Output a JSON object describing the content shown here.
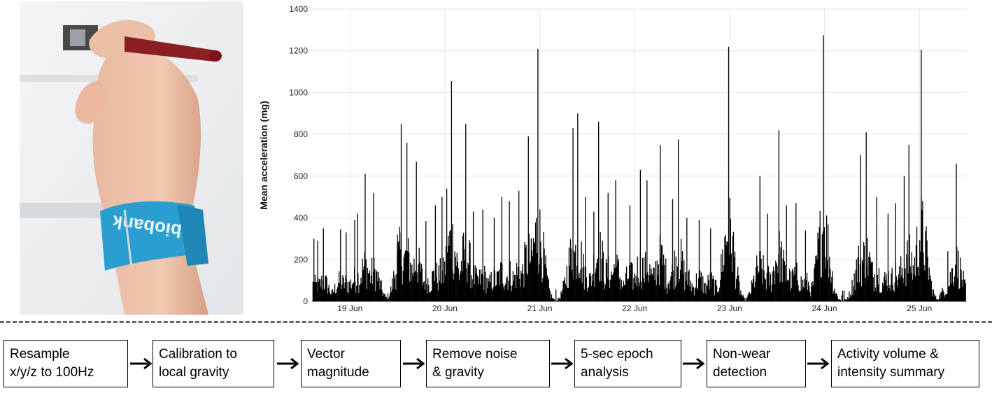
{
  "photo": {
    "description_icon": "hand-with-paintbrush-and-wrist-accelerometer",
    "band_text": "biobank",
    "band_color": "#2a9ed0"
  },
  "chart_data": {
    "type": "bar",
    "title": "",
    "xlabel": "",
    "ylabel": "Mean acceleration (mg)",
    "ylim": [
      0,
      1400
    ],
    "yticks": [
      0,
      200,
      400,
      600,
      800,
      1000,
      1200,
      1400
    ],
    "x_range_days": [
      18.6,
      25.5
    ],
    "xticks": [
      {
        "label": "19 Jun",
        "day": 19
      },
      {
        "label": "20 Jun",
        "day": 20
      },
      {
        "label": "21 Jun",
        "day": 21
      },
      {
        "label": "22 Jun",
        "day": 22
      },
      {
        "label": "23 Jun",
        "day": 23
      },
      {
        "label": "24 Jun",
        "day": 24
      },
      {
        "label": "25 Jun",
        "day": 25
      }
    ],
    "grid": true,
    "bar_color": "#000000",
    "peaks": [
      {
        "day": 18.62,
        "value": 300
      },
      {
        "day": 18.66,
        "value": 290
      },
      {
        "day": 18.72,
        "value": 350
      },
      {
        "day": 18.9,
        "value": 345
      },
      {
        "day": 18.96,
        "value": 330
      },
      {
        "day": 19.05,
        "value": 390
      },
      {
        "day": 19.08,
        "value": 420
      },
      {
        "day": 19.16,
        "value": 610
      },
      {
        "day": 19.25,
        "value": 520
      },
      {
        "day": 19.5,
        "value": 320
      },
      {
        "day": 19.54,
        "value": 850
      },
      {
        "day": 19.6,
        "value": 760
      },
      {
        "day": 19.7,
        "value": 670
      },
      {
        "day": 19.8,
        "value": 385
      },
      {
        "day": 19.9,
        "value": 460
      },
      {
        "day": 19.97,
        "value": 500
      },
      {
        "day": 20.02,
        "value": 540
      },
      {
        "day": 20.07,
        "value": 1055
      },
      {
        "day": 20.22,
        "value": 850
      },
      {
        "day": 20.3,
        "value": 430
      },
      {
        "day": 20.4,
        "value": 440
      },
      {
        "day": 20.52,
        "value": 400
      },
      {
        "day": 20.6,
        "value": 500
      },
      {
        "day": 20.68,
        "value": 480
      },
      {
        "day": 20.78,
        "value": 530
      },
      {
        "day": 20.88,
        "value": 790
      },
      {
        "day": 20.98,
        "value": 1210
      },
      {
        "day": 21.35,
        "value": 830
      },
      {
        "day": 21.4,
        "value": 900
      },
      {
        "day": 21.48,
        "value": 500
      },
      {
        "day": 21.57,
        "value": 430
      },
      {
        "day": 21.62,
        "value": 860
      },
      {
        "day": 21.72,
        "value": 520
      },
      {
        "day": 21.8,
        "value": 580
      },
      {
        "day": 21.95,
        "value": 460
      },
      {
        "day": 22.06,
        "value": 630
      },
      {
        "day": 22.13,
        "value": 580
      },
      {
        "day": 22.27,
        "value": 750
      },
      {
        "day": 22.4,
        "value": 490
      },
      {
        "day": 22.46,
        "value": 775
      },
      {
        "day": 22.55,
        "value": 400
      },
      {
        "day": 22.68,
        "value": 390
      },
      {
        "day": 22.8,
        "value": 350
      },
      {
        "day": 22.99,
        "value": 1220
      },
      {
        "day": 23.32,
        "value": 600
      },
      {
        "day": 23.4,
        "value": 420
      },
      {
        "day": 23.52,
        "value": 820
      },
      {
        "day": 23.6,
        "value": 460
      },
      {
        "day": 23.7,
        "value": 470
      },
      {
        "day": 23.8,
        "value": 340
      },
      {
        "day": 23.99,
        "value": 1275
      },
      {
        "day": 24.38,
        "value": 700
      },
      {
        "day": 24.44,
        "value": 810
      },
      {
        "day": 24.55,
        "value": 500
      },
      {
        "day": 24.67,
        "value": 420
      },
      {
        "day": 24.75,
        "value": 470
      },
      {
        "day": 24.84,
        "value": 600
      },
      {
        "day": 24.89,
        "value": 750
      },
      {
        "day": 25.02,
        "value": 1205
      },
      {
        "day": 25.3,
        "value": 240
      },
      {
        "day": 25.39,
        "value": 660
      }
    ]
  },
  "pipeline": {
    "steps": [
      {
        "label": "Resample\nx/y/z to 100Hz"
      },
      {
        "label": "Calibration to\nlocal gravity"
      },
      {
        "label": "Vector\nmagnitude"
      },
      {
        "label": "Remove noise\n& gravity"
      },
      {
        "label": "5-sec epoch\nanalysis"
      },
      {
        "label": "Non-wear\ndetection"
      },
      {
        "label": "Activity volume &\nintensity summary"
      }
    ]
  }
}
